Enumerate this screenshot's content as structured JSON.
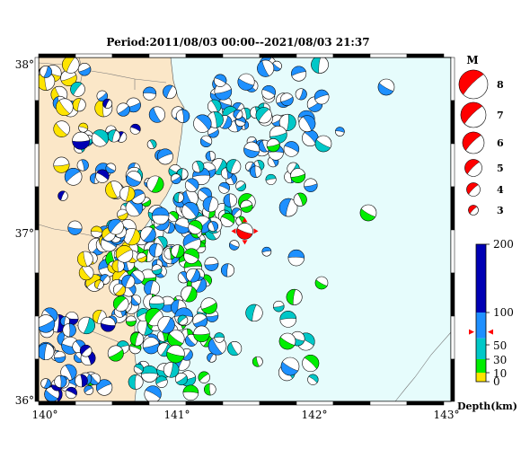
{
  "title": "Period:2011/08/03 00:00--2021/08/03 21:37",
  "map": {
    "lon_ticks": [
      "140°",
      "141°",
      "142°",
      "143°"
    ],
    "lat_ticks": [
      "38°",
      "37°",
      "36°"
    ],
    "lon_range": [
      140,
      143
    ],
    "lat_range": [
      36,
      38
    ],
    "land_color": "#fbe7c8",
    "sea_color": "#e6fcfc"
  },
  "magnitude_legend": {
    "title": "M",
    "values": [
      "8",
      "7",
      "6",
      "5",
      "4",
      "3"
    ],
    "color": "#ff0000"
  },
  "depth_legend": {
    "title": "Depth(km)",
    "ticks": [
      "200",
      "100",
      "50",
      "30",
      "10",
      "0"
    ],
    "levels": [
      200,
      100,
      50,
      30,
      10,
      0
    ],
    "marker_level": 70,
    "colors": {
      "0-10": "#ffe400",
      "10-30": "#00ee00",
      "30-60": "#00c8c8",
      "60-100": "#1e90ff",
      "100-200": "#0000b4"
    }
  },
  "highlight_event": {
    "lon": 141.5,
    "lat": 36.99,
    "mag": 5.0,
    "color": "#ff0000"
  }
}
